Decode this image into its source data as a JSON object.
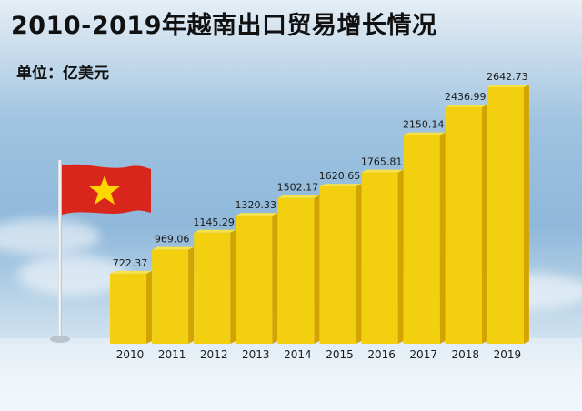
{
  "title": "2010-2019年越南出口贸易增长情况",
  "unit_label": "单位：亿美元",
  "chart_data": {
    "type": "bar",
    "title": "2010-2019年越南出口贸易增长情况",
    "ylabel": "单位：亿美元",
    "xlabel": "",
    "categories": [
      "2010",
      "2011",
      "2012",
      "2013",
      "2014",
      "2015",
      "2016",
      "2017",
      "2018",
      "2019"
    ],
    "values": [
      722.37,
      969.06,
      1145.29,
      1320.33,
      1502.17,
      1620.65,
      1765.81,
      2150.14,
      2436.99,
      2642.73
    ],
    "value_labels": [
      "722.37",
      "969.06",
      "1145.29",
      "1320.33",
      "1502.17",
      "1620.65",
      "1765.81",
      "2150.14",
      "2436.99",
      "2642.73"
    ],
    "ylim": [
      0,
      2642.73
    ],
    "grid": false,
    "legend": "none",
    "bar_color": "#f2d010",
    "bar_side_color": "#d3a400",
    "bar_top_color": "#f8e24a"
  },
  "colors": {
    "flag_red": "#d9261c",
    "flag_star": "#ffd500"
  }
}
